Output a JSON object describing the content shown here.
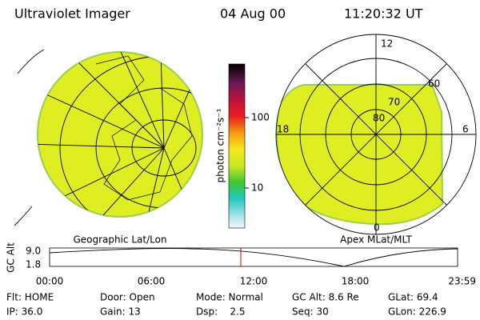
{
  "header": {
    "title": "Ultraviolet Imager",
    "date": "04 Aug 00",
    "time": "11:20:32 UT"
  },
  "colorbar": {
    "label": "photon cm⁻²s⁻¹",
    "ticks": [
      "100",
      "10"
    ]
  },
  "left_map": {
    "label": "Geographic Lat/Lon"
  },
  "right_map": {
    "label": "Apex MLat/MLT",
    "mlt_labels": [
      "12",
      "18",
      "6",
      "0"
    ],
    "lat_labels": [
      "60",
      "70",
      "80"
    ]
  },
  "altitude_plot": {
    "ylabel": "GC Alt",
    "yticks": [
      "9.0",
      "1.8"
    ],
    "xticks": [
      "00:00",
      "06:00",
      "12:00",
      "18:00",
      "23:59"
    ]
  },
  "footer": {
    "rows": [
      [
        "Flt: HOME",
        "Door: Open",
        "Mode: Normal",
        "GC Alt: 8.6 Re",
        "GLat: 69.4"
      ],
      [
        "IP: 36.0",
        "Gain: 13",
        "Dsp:    2.5",
        "Seq: 30",
        "GLon: 226.9"
      ]
    ]
  }
}
